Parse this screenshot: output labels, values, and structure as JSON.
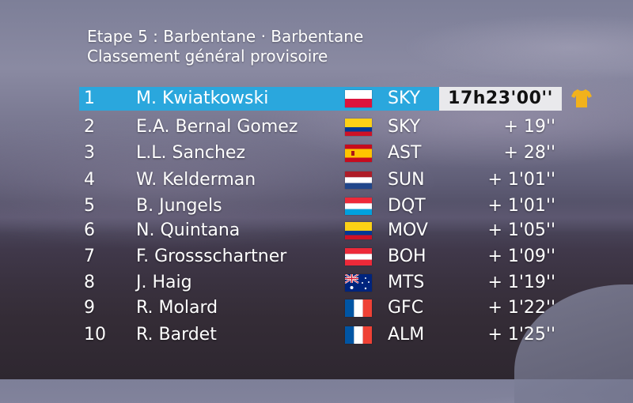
{
  "header": {
    "line1": "Etape 5 : Barbentane · Barbentane",
    "line2": "Classement général provisoire"
  },
  "colors": {
    "leader_bar": "#2aa7dd",
    "leader_time_box": "#e9e9ec",
    "jersey": "#f2b21b"
  },
  "leader_jersey_icon": "yellow-jersey-icon",
  "rows": [
    {
      "pos": "1",
      "name": "M. Kwiatkowski",
      "flag": "poland",
      "team": "SKY",
      "time": "17h23'00''"
    },
    {
      "pos": "2",
      "name": "E.A. Bernal Gomez",
      "flag": "colombia",
      "team": "SKY",
      "time": "+  19''"
    },
    {
      "pos": "3",
      "name": "L.L. Sanchez",
      "flag": "spain",
      "team": "AST",
      "time": "+  28''"
    },
    {
      "pos": "4",
      "name": "W. Kelderman",
      "flag": "netherlands",
      "team": "SUN",
      "time": "+ 1'01''"
    },
    {
      "pos": "5",
      "name": "B. Jungels",
      "flag": "luxembourg",
      "team": "DQT",
      "time": "+ 1'01''"
    },
    {
      "pos": "6",
      "name": "N. Quintana",
      "flag": "colombia",
      "team": "MOV",
      "time": "+ 1'05''"
    },
    {
      "pos": "7",
      "name": "F. Grossschartner",
      "flag": "austria",
      "team": "BOH",
      "time": "+ 1'09''"
    },
    {
      "pos": "8",
      "name": "J. Haig",
      "flag": "australia",
      "team": "MTS",
      "time": "+ 1'19''"
    },
    {
      "pos": "9",
      "name": "R. Molard",
      "flag": "france",
      "team": "GFC",
      "time": "+ 1'22''"
    },
    {
      "pos": "10",
      "name": "R. Bardet",
      "flag": "france",
      "team": "ALM",
      "time": "+ 1'25''"
    }
  ]
}
